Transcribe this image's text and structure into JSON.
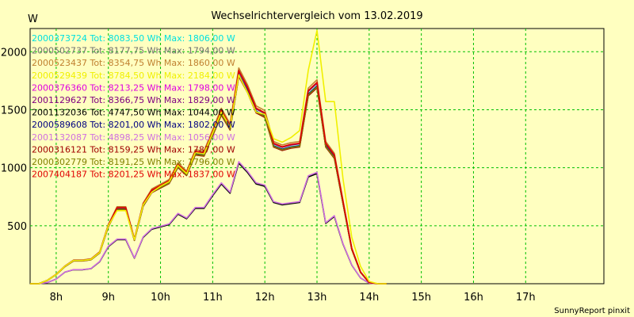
{
  "chart_data": {
    "type": "line",
    "title": "Wechselrichtervergleich vom 13.02.2019",
    "ylabel": "W",
    "xlabel": "",
    "credit": "SunnyReport pinxit",
    "x_start_hour": 7.5,
    "x_step_hours": 0.16667,
    "xlim": [
      7.5,
      18.5
    ],
    "ylim": [
      0,
      2200
    ],
    "yticks": [
      500,
      1000,
      1500,
      2000
    ],
    "ytick_labels": [
      "500",
      "1000",
      "1500",
      "2000"
    ],
    "xticks": [
      8,
      9,
      10,
      11,
      12,
      13,
      14,
      15,
      16,
      17
    ],
    "xtick_labels": [
      "8h",
      "9h",
      "10h",
      "11h",
      "12h",
      "13h",
      "14h",
      "15h",
      "16h",
      "17h"
    ],
    "grid": true,
    "legend_position": "top-left",
    "series": [
      {
        "name": "2000373724 Tot: 8083,50 Wh Max: 1806,00 W",
        "color": "#00e0e0",
        "kind": "A",
        "max": 1806
      },
      {
        "name": "2000502737 Tot: 8177,75 Wh Max: 1794,00 W",
        "color": "#707070",
        "kind": "A",
        "max": 1794
      },
      {
        "name": "2000523437 Tot: 8354,75 Wh Max: 1860,00 W",
        "color": "#c08030",
        "kind": "A",
        "max": 1860
      },
      {
        "name": "2000529439 Tot: 8784,50 Wh Max: 2184,00 W",
        "color": "#f0f000",
        "kind": "Y",
        "max": 2184
      },
      {
        "name": "2000376360 Tot: 8213,25 Wh Max: 1798,00 W",
        "color": "#e000e0",
        "kind": "A",
        "max": 1798
      },
      {
        "name": "2001129627 Tot: 8366,75 Wh Max: 1829,00 W",
        "color": "#800080",
        "kind": "A",
        "max": 1829
      },
      {
        "name": "2001132036 Tot: 4747,50 Wh Max: 1044,00 W",
        "color": "#000000",
        "kind": "B",
        "max": 1044
      },
      {
        "name": "2000589608 Tot: 8201,00 Wh Max: 1802,00 W",
        "color": "#000080",
        "kind": "A",
        "max": 1802
      },
      {
        "name": "2001132087 Tot: 4898,25 Wh Max: 1056,00 W",
        "color": "#d070e0",
        "kind": "B",
        "max": 1056
      },
      {
        "name": "2000316121 Tot: 8159,25 Wh Max: 1787,00 W",
        "color": "#a00000",
        "kind": "A",
        "max": 1787
      },
      {
        "name": "2000302779 Tot: 8191,25 Wh Max: 1796,00 W",
        "color": "#808000",
        "kind": "A",
        "max": 1796
      },
      {
        "name": "2007404187 Tot: 8201,25 Wh Max: 1837,00 W",
        "color": "#e00000",
        "kind": "A",
        "max": 1837
      }
    ],
    "profiles": {
      "A": [
        0,
        0,
        30,
        80,
        150,
        200,
        200,
        210,
        270,
        500,
        650,
        650,
        380,
        680,
        800,
        840,
        880,
        1020,
        950,
        1130,
        1120,
        1300,
        1480,
        1350,
        1820,
        1680,
        1500,
        1460,
        1200,
        1170,
        1190,
        1200,
        1650,
        1720,
        1200,
        1100,
        700,
        300,
        100,
        10,
        0,
        0
      ],
      "B": [
        0,
        0,
        10,
        40,
        100,
        120,
        120,
        130,
        190,
        320,
        380,
        380,
        220,
        400,
        470,
        490,
        510,
        600,
        560,
        650,
        650,
        760,
        860,
        780,
        1040,
        960,
        860,
        840,
        700,
        680,
        690,
        700,
        920,
        950,
        520,
        580,
        340,
        160,
        50,
        5,
        0,
        0
      ],
      "Y": [
        0,
        0,
        30,
        80,
        150,
        200,
        200,
        210,
        270,
        500,
        630,
        630,
        380,
        680,
        790,
        840,
        880,
        1020,
        950,
        1130,
        1120,
        1300,
        1480,
        1350,
        1800,
        1650,
        1480,
        1460,
        1250,
        1220,
        1260,
        1320,
        1840,
        2184,
        1570,
        1570,
        900,
        400,
        150,
        20,
        0,
        0
      ]
    }
  }
}
